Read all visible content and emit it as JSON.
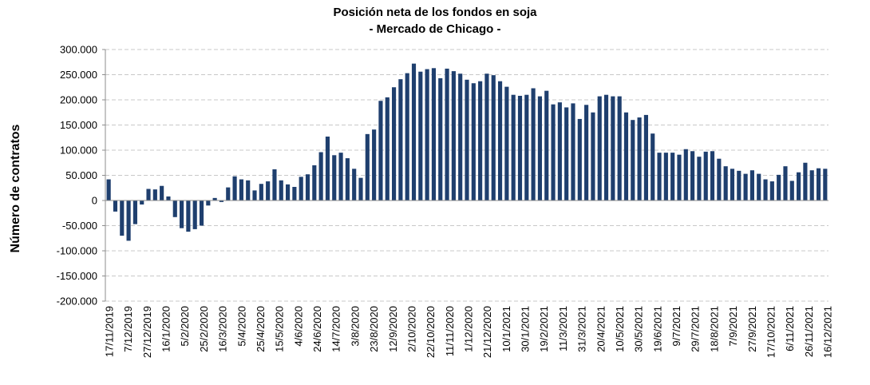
{
  "chart_data": {
    "type": "bar",
    "title": "Posición neta de los fondos en soja",
    "subtitle": "- Mercado de Chicago -",
    "xlabel": "",
    "ylabel": "Número de contratos",
    "ylim": [
      -200000,
      300000
    ],
    "yticks": [
      300000,
      250000,
      200000,
      150000,
      100000,
      50000,
      0,
      -50000,
      -100000,
      -150000,
      -200000
    ],
    "ytick_labels": [
      "300.000",
      "250.000",
      "200.000",
      "150.000",
      "100.000",
      "50.000",
      "0",
      "-50.000",
      "-100.000",
      "-150.000",
      "-200.000"
    ],
    "grid": true,
    "bar_color": "#1f3f6e",
    "x_tick_labels": [
      "17/11/2019",
      "7/12/2019",
      "27/12/2019",
      "16/1/2020",
      "5/2/2020",
      "25/2/2020",
      "16/3/2020",
      "5/4/2020",
      "25/4/2020",
      "15/5/2020",
      "4/6/2020",
      "24/6/2020",
      "14/7/2020",
      "3/8/2020",
      "23/8/2020",
      "12/9/2020",
      "2/10/2020",
      "22/10/2020",
      "11/11/2020",
      "1/12/2020",
      "21/12/2020",
      "10/1/2021",
      "30/1/2021",
      "19/2/2021",
      "11/3/2021",
      "31/3/2021",
      "20/4/2021",
      "10/5/2021",
      "30/5/2021",
      "19/6/2021",
      "9/7/2021",
      "29/7/2021",
      "18/8/2021",
      "7/9/2021",
      "27/9/2021",
      "17/10/2021",
      "6/11/2021",
      "26/11/2021",
      "16/12/2021"
    ],
    "values": [
      42000,
      -22000,
      -70000,
      -80000,
      -47000,
      -8000,
      23000,
      22000,
      29000,
      8000,
      -33000,
      -55000,
      -62000,
      -57000,
      -50000,
      -10000,
      5000,
      -3000,
      26000,
      48000,
      42000,
      40000,
      20000,
      33000,
      38000,
      62000,
      40000,
      32000,
      27000,
      47000,
      52000,
      70000,
      96000,
      127000,
      90000,
      95000,
      84000,
      63000,
      45000,
      132000,
      141000,
      198000,
      205000,
      225000,
      241000,
      253000,
      272000,
      256000,
      261000,
      263000,
      243000,
      262000,
      257000,
      252000,
      240000,
      233000,
      237000,
      252000,
      249000,
      237000,
      226000,
      210000,
      208000,
      210000,
      223000,
      207000,
      218000,
      191000,
      195000,
      185000,
      193000,
      162000,
      190000,
      175000,
      207000,
      210000,
      207000,
      207000,
      175000,
      160000,
      165000,
      170000,
      133000,
      95000,
      95000,
      95000,
      91000,
      102000,
      98000,
      87000,
      97000,
      98000,
      83000,
      68000,
      63000,
      59000,
      53000,
      60000,
      53000,
      42000,
      38000,
      51000,
      68000,
      39000,
      56000,
      75000,
      60000,
      64000,
      63000
    ]
  }
}
